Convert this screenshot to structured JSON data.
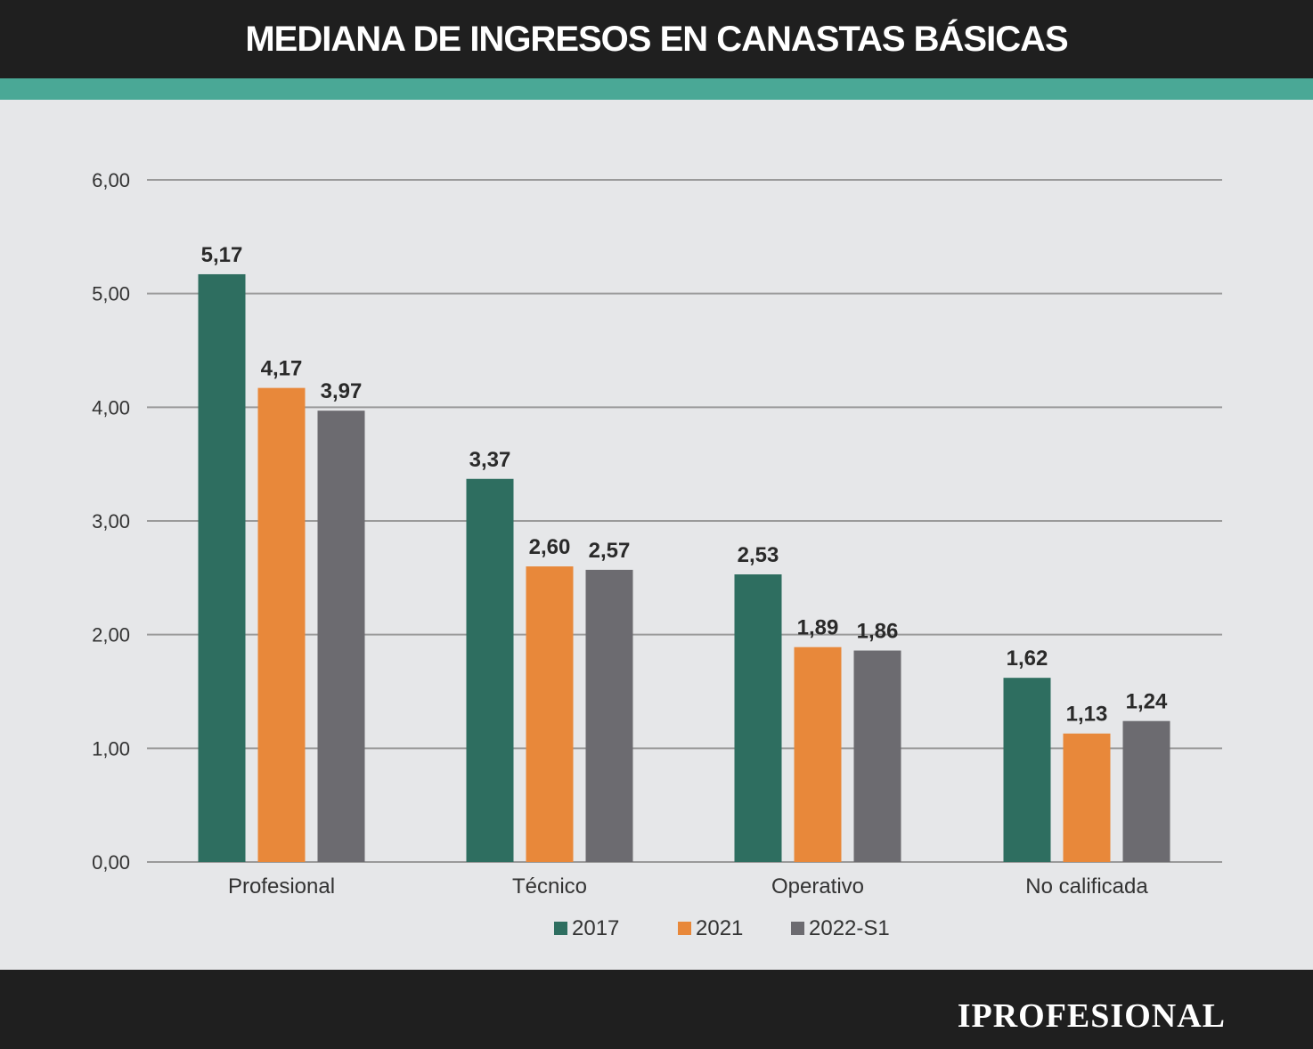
{
  "header": {
    "title": "MEDIANA DE INGRESOS EN CANASTAS BÁSICAS"
  },
  "footer": {
    "brand": "IPROFESIONAL"
  },
  "colors": {
    "header_bg": "#1f1f1f",
    "accent": "#4aa896",
    "background": "#e6e7e9",
    "grid": "#9a9a9a",
    "s2017": "#2e6e60",
    "s2021": "#e8883a",
    "s2022": "#6c6b70"
  },
  "chart_data": {
    "type": "bar",
    "categories": [
      "Profesional",
      "Técnico",
      "Operativo",
      "No calificada"
    ],
    "series": [
      {
        "name": "2017",
        "values": [
          5.17,
          3.37,
          2.53,
          1.62
        ],
        "labels": [
          "5,17",
          "3,37",
          "2,53",
          "1,62"
        ]
      },
      {
        "name": "2021",
        "values": [
          4.17,
          2.6,
          1.89,
          1.13
        ],
        "labels": [
          "4,17",
          "2,60",
          "1,89",
          "1,13"
        ]
      },
      {
        "name": "2022-S1",
        "values": [
          3.97,
          2.57,
          1.86,
          1.24
        ],
        "labels": [
          "3,97",
          "2,57",
          "1,86",
          "1,24"
        ]
      }
    ],
    "yticks": [
      0,
      1,
      2,
      3,
      4,
      5,
      6
    ],
    "ytick_labels": [
      "0,00",
      "1,00",
      "2,00",
      "3,00",
      "4,00",
      "5,00",
      "6,00"
    ],
    "ylim": [
      0,
      6
    ],
    "grid": true,
    "legend": "bottom-center"
  }
}
